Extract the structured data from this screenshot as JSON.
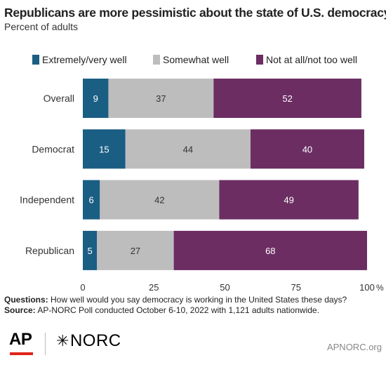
{
  "header": {
    "title": "Republicans are more pessimistic about the state of U.S. democracy",
    "subtitle": "Percent of adults"
  },
  "chart_data": {
    "type": "bar",
    "orientation": "horizontal",
    "stacked": true,
    "categories": [
      "Overall",
      "Democrat",
      "Independent",
      "Republican"
    ],
    "series": [
      {
        "name": "Extremely/very well",
        "color": "#1b5e84",
        "values": [
          9,
          15,
          6,
          5
        ]
      },
      {
        "name": "Somewhat well",
        "color": "#bdbdbd",
        "values": [
          37,
          44,
          42,
          27
        ]
      },
      {
        "name": "Not at all/not too well",
        "color": "#6b2d62",
        "values": [
          52,
          40,
          49,
          68
        ]
      }
    ],
    "xlim": [
      0,
      100
    ],
    "x_ticks": [
      "0",
      "25",
      "50",
      "75",
      "100"
    ],
    "x_unit": "%",
    "legend_position": "top",
    "grid": false
  },
  "footer": {
    "questions_label": "Questions:",
    "questions_text": "How well would you say democracy is working in the United States these days?",
    "source_label": "Source:",
    "source_text": "AP-NORC Poll conducted October 6-10, 2022 with 1,121 adults nationwide."
  },
  "branding": {
    "ap_logo": "AP",
    "norc_logo": "NORC",
    "norc_star": "✳",
    "site": "APNORC.org",
    "ap_red": "#e2231a"
  }
}
